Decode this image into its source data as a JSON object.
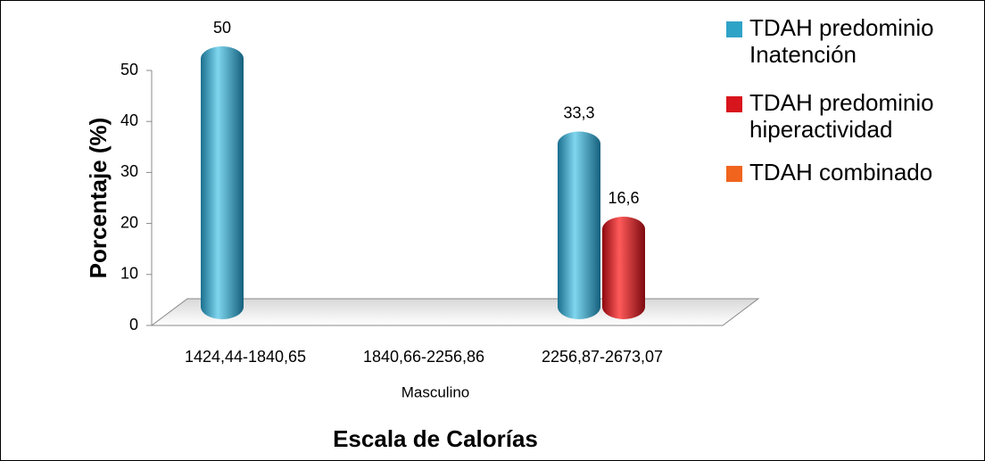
{
  "chart_data": {
    "type": "bar",
    "y_label": "Porcentaje (%)",
    "x_sublabel": "Masculino",
    "x_label": "Escala de Calorías",
    "categories": [
      "1424,44-1840,65",
      "1840,66-2256,86",
      "2256,87-2673,07"
    ],
    "series": [
      {
        "name": "TDAH predominio Inatención",
        "color": "#2ea3c8",
        "values": [
          50,
          null,
          33.3
        ],
        "value_labels": [
          "50",
          null,
          "33,3"
        ]
      },
      {
        "name": "TDAH predominio hiperactividad",
        "color": "#d8141c",
        "values": [
          null,
          null,
          16.6
        ],
        "value_labels": [
          null,
          null,
          "16,6"
        ]
      },
      {
        "name": "TDAH combinado",
        "color": "#f0641e",
        "values": [
          null,
          null,
          null
        ]
      }
    ],
    "ylim": [
      0,
      50
    ],
    "yticks": [
      0,
      10,
      20,
      30,
      40,
      50
    ],
    "legend": "right"
  }
}
